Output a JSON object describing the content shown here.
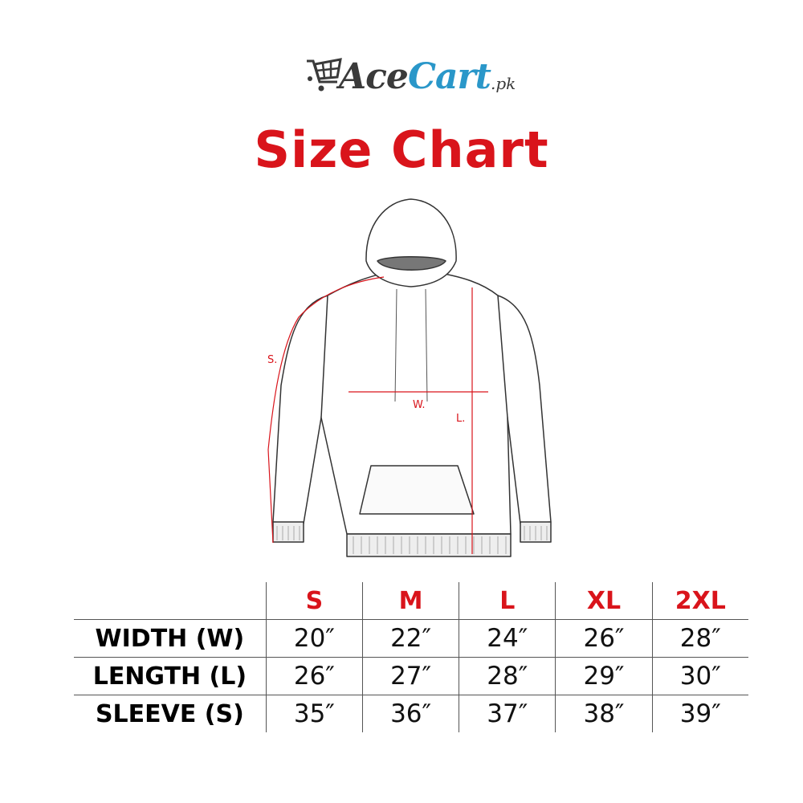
{
  "logo": {
    "part1": "Ace",
    "part2": "Cart",
    "suffix": ".pk",
    "icon": "shopping-cart-icon",
    "colors": {
      "dark": "#3a3a3a",
      "blue": "#2a97c9"
    }
  },
  "title": "Size Chart",
  "accent_color": "#d9141b",
  "diagram": {
    "sleeve_label": "S.",
    "width_label": "W.",
    "length_label": "L."
  },
  "table": {
    "sizes": [
      "S",
      "M",
      "L",
      "XL",
      "2XL"
    ],
    "rows": [
      {
        "label": "WIDTH (W)",
        "values": [
          "20″",
          "22″",
          "24″",
          "26″",
          "28″"
        ]
      },
      {
        "label": "LENGTH (L)",
        "values": [
          "26″",
          "27″",
          "28″",
          "29″",
          "30″"
        ]
      },
      {
        "label": "SLEEVE (S)",
        "values": [
          "35″",
          "36″",
          "37″",
          "38″",
          "39″"
        ]
      }
    ]
  }
}
